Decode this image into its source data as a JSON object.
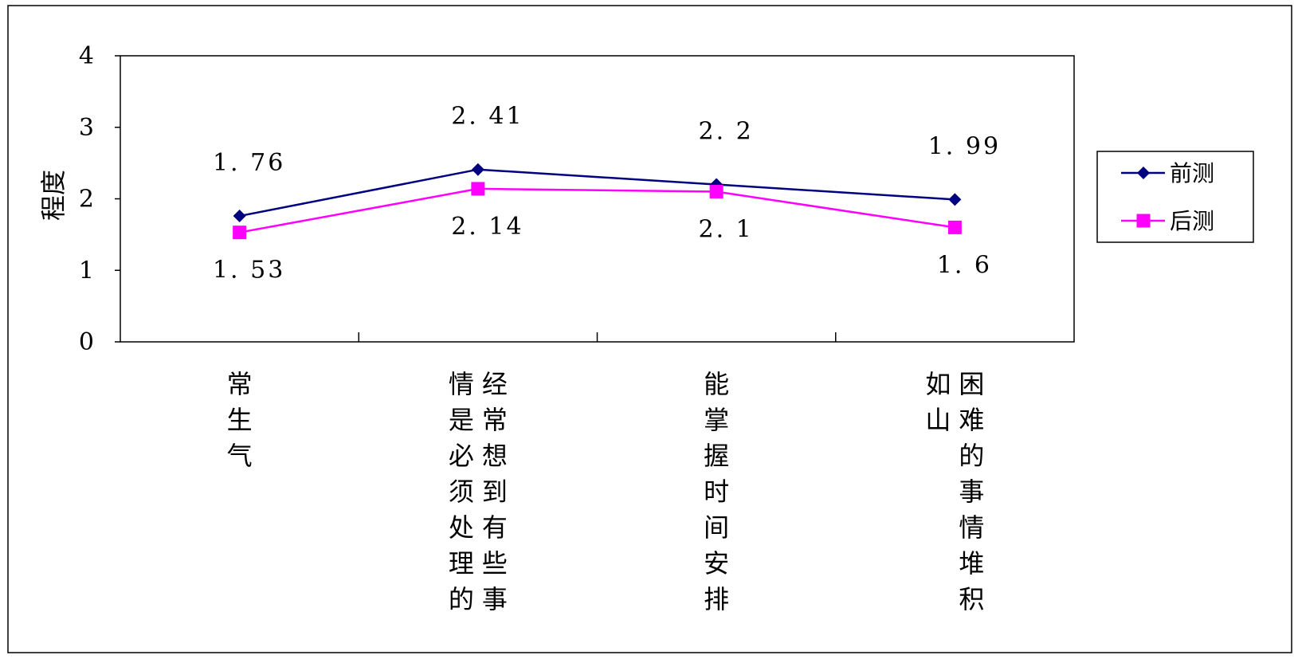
{
  "chart_data": {
    "type": "line",
    "title": "",
    "xlabel": "",
    "ylabel": "程度",
    "ylim": [
      0,
      4
    ],
    "yticks": [
      0,
      1,
      2,
      3,
      4
    ],
    "grid": false,
    "legend_position": "right",
    "categories": [
      "常生气",
      "经常想到有些事情是必须处理的",
      "能掌握时间安排",
      "困难的事情堆积如山"
    ],
    "category_columns": [
      [
        "常生气"
      ],
      [
        "经常想到有些事",
        "情是必须处理的"
      ],
      [
        "能掌握时间安排"
      ],
      [
        "困难的事情堆积",
        "如山"
      ]
    ],
    "series": [
      {
        "name": "前测",
        "values": [
          1.76,
          2.41,
          2.2,
          1.99
        ],
        "labels": [
          "1. 76",
          "2. 41",
          "2. 2",
          "1. 99"
        ],
        "color": "#000080",
        "marker": "diamond"
      },
      {
        "name": "后测",
        "values": [
          1.53,
          2.14,
          2.1,
          1.6
        ],
        "labels": [
          "1. 53",
          "2. 14",
          "2. 1",
          "1. 6"
        ],
        "color": "#FF00FF",
        "marker": "square"
      }
    ]
  }
}
